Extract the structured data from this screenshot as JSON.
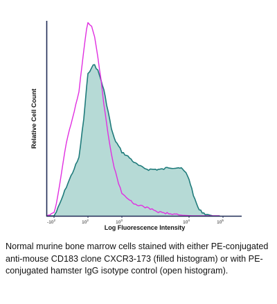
{
  "chart_data": {
    "type": "area",
    "x_scale": "biexponential",
    "ylabel": "Relative Cell Count",
    "xlabel": "Log Fluorescence Intensity",
    "x_ticks": [
      {
        "label": "-10",
        "exp": "2",
        "value": -100
      },
      {
        "label": "10",
        "exp": "2",
        "value": 100
      },
      {
        "label": "10",
        "exp": "3",
        "value": 1000
      },
      {
        "label": "10",
        "exp": "4",
        "value": 10000
      },
      {
        "label": "10",
        "exp": "5",
        "value": 100000
      }
    ],
    "xlim": [
      -150,
      150000
    ],
    "ylim": [
      0,
      1
    ],
    "grid": false,
    "legend": "none",
    "series": [
      {
        "style": "filled",
        "line_color": "#1e7a7a",
        "fill_color": "#b6dad6",
        "x": [
          -150,
          -100,
          -70,
          -40,
          -10,
          20,
          50,
          80,
          100,
          130,
          160,
          200,
          250,
          300,
          400,
          500,
          600,
          800,
          1000,
          1300,
          1600,
          2000,
          2500,
          3000,
          3500,
          4000,
          5000,
          6000,
          7000,
          8000,
          9000,
          10000,
          12000,
          15000,
          20000,
          30000,
          50000,
          80000
        ],
        "y": [
          0.0,
          0.0,
          0.02,
          0.06,
          0.15,
          0.3,
          0.5,
          0.66,
          0.73,
          0.77,
          0.78,
          0.75,
          0.7,
          0.65,
          0.54,
          0.45,
          0.4,
          0.36,
          0.33,
          0.3,
          0.27,
          0.25,
          0.24,
          0.24,
          0.24,
          0.24,
          0.25,
          0.25,
          0.25,
          0.24,
          0.22,
          0.19,
          0.14,
          0.08,
          0.03,
          0.01,
          0.0,
          0.0
        ]
      },
      {
        "style": "open",
        "line_color": "#e02ee0",
        "x": [
          -150,
          -100,
          -70,
          -40,
          -10,
          20,
          50,
          80,
          100,
          130,
          160,
          200,
          250,
          300,
          400,
          500,
          600,
          800,
          1000,
          1300,
          1600,
          2000,
          2500,
          3000,
          3500,
          4000,
          5000,
          6000,
          7000,
          8000,
          9000,
          10000,
          12000,
          15000,
          20000,
          30000,
          50000,
          80000
        ],
        "y": [
          0.0,
          0.02,
          0.06,
          0.16,
          0.38,
          0.64,
          0.85,
          0.96,
          1.0,
          0.98,
          0.92,
          0.82,
          0.7,
          0.58,
          0.42,
          0.32,
          0.25,
          0.17,
          0.12,
          0.08,
          0.06,
          0.05,
          0.04,
          0.03,
          0.02,
          0.018,
          0.012,
          0.008,
          0.005,
          0.003,
          0.002,
          0.001,
          0.0,
          0.0,
          0.0,
          0.0,
          0.0,
          0.0
        ]
      }
    ]
  },
  "caption": "Normal murine bone marrow cells stained with either PE-conjugated anti-mouse CD183 clone CXCR3-173 (filled histogram) or with PE-conjugated hamster IgG isotype control (open histogram)."
}
